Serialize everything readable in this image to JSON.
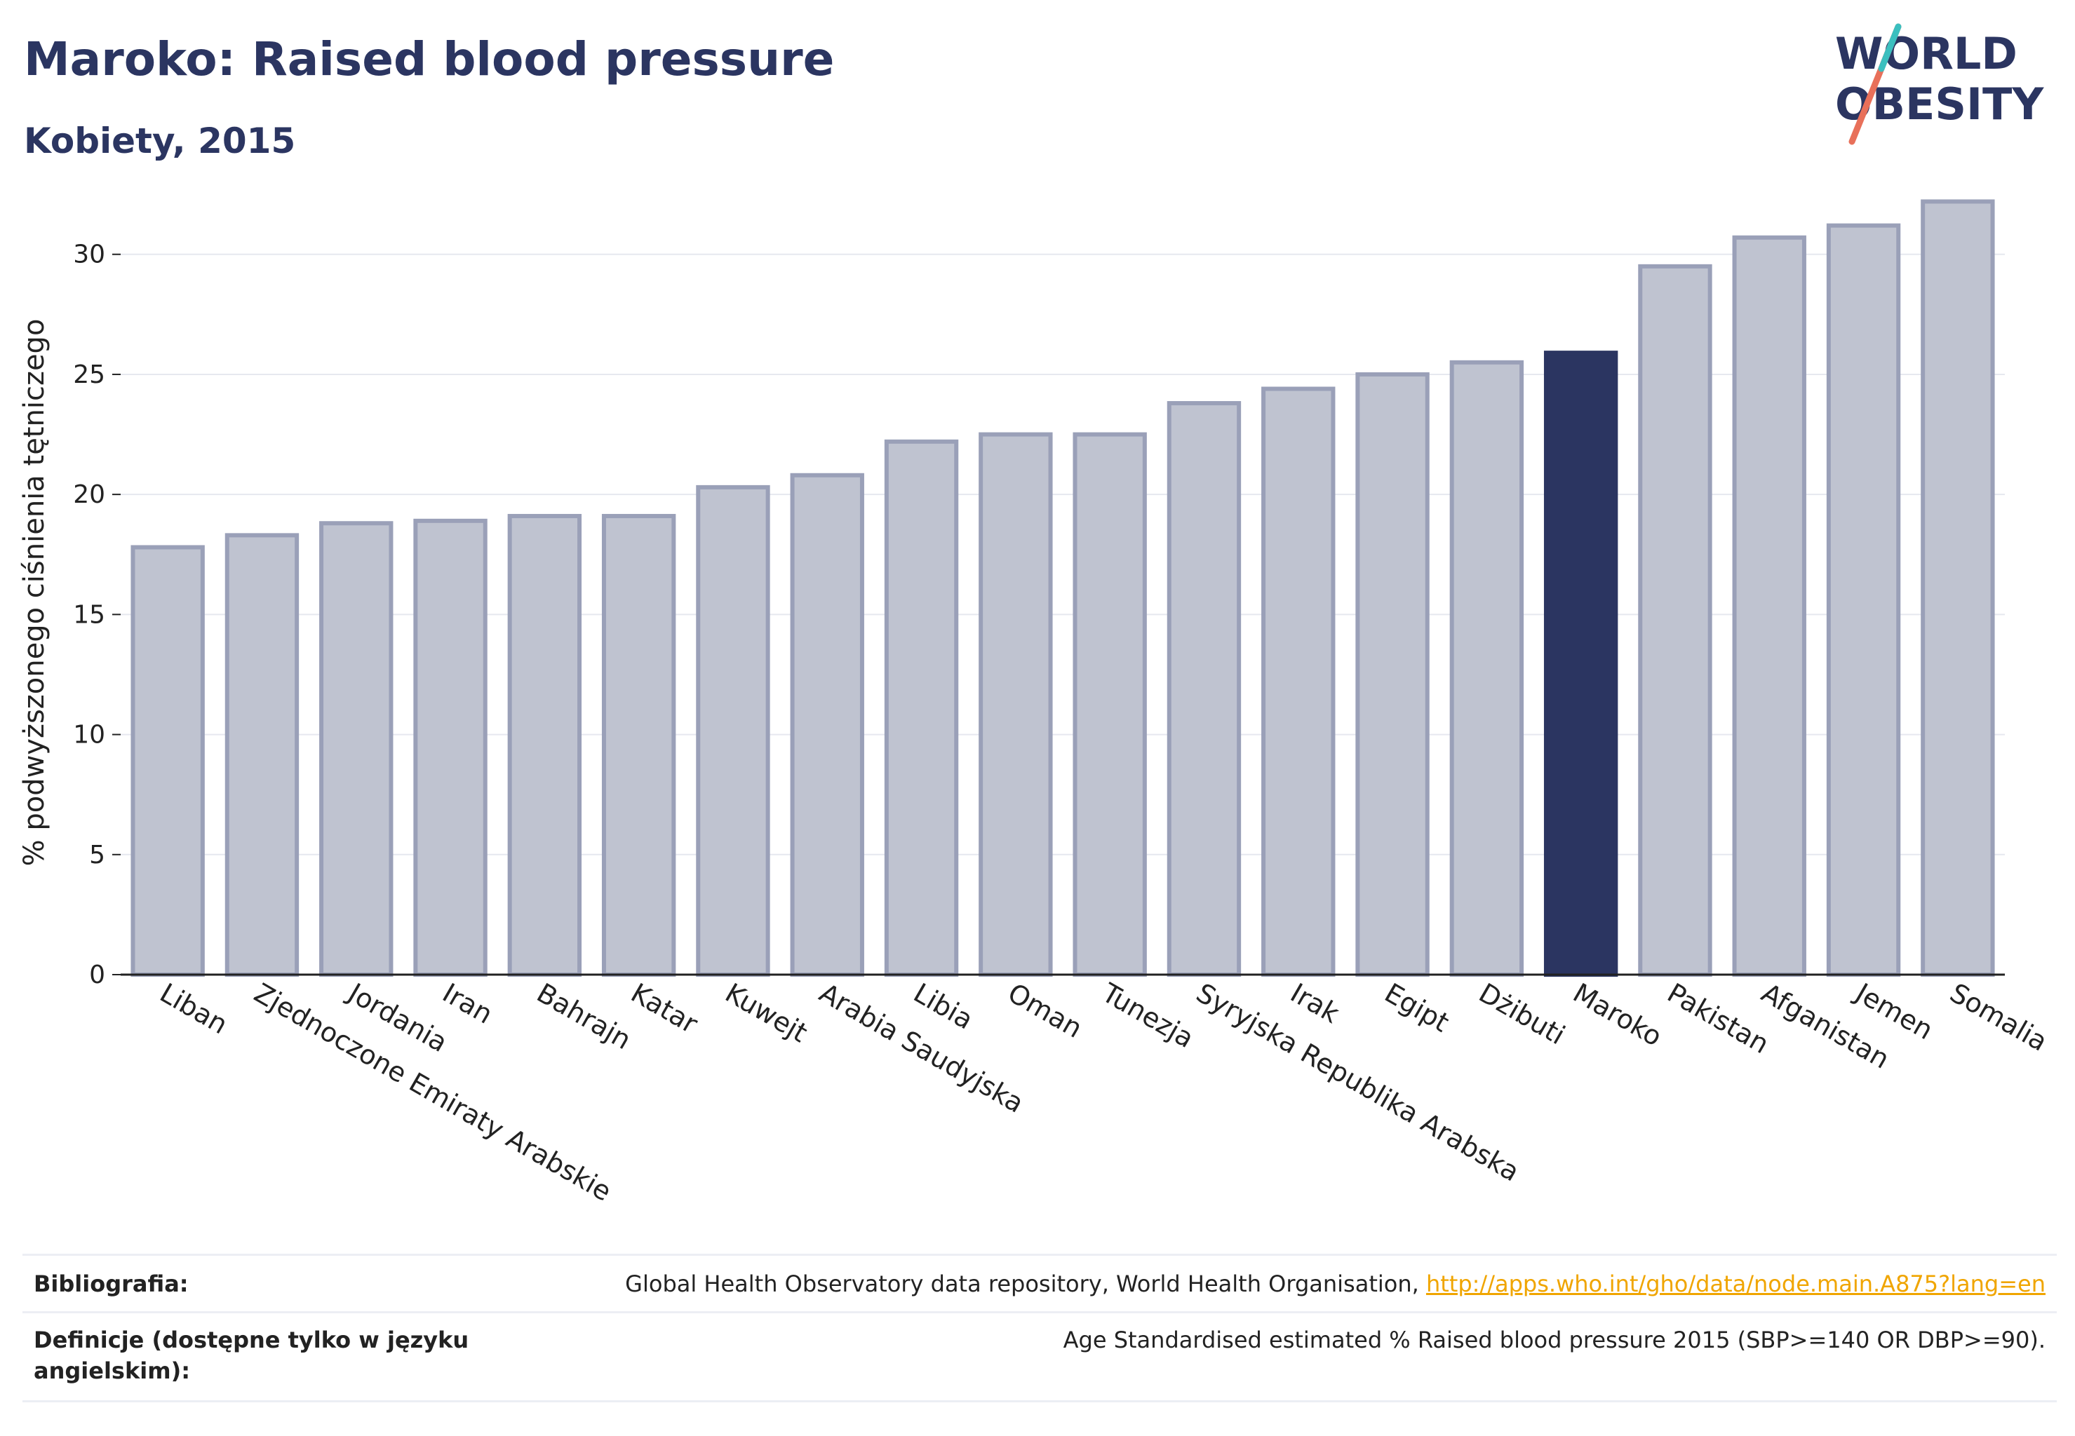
{
  "header": {
    "title": "Maroko: Raised blood pressure",
    "subtitle": "Kobiety, 2015"
  },
  "logo": {
    "line1": "WORLD",
    "line2": "OBESITY"
  },
  "colors": {
    "title": "#2b3561",
    "bar_default": "#bfc3d0",
    "bar_default_stroke": "#9aa0b8",
    "bar_highlight": "#2b3561",
    "grid": "#e6e8ef",
    "link": "#f0a500"
  },
  "chart_data": {
    "type": "bar",
    "ylabel": "% podwyższonego ciśnienia tętniczego",
    "ylim": [
      0,
      33
    ],
    "yticks": [
      0,
      5,
      10,
      15,
      20,
      25,
      30
    ],
    "grid": true,
    "highlight": "Maroko",
    "categories": [
      "Liban",
      "Zjednoczone Emiraty Arabskie",
      "Jordania",
      "Iran",
      "Bahrajn",
      "Katar",
      "Kuwejt",
      "Arabia Saudyjska",
      "Libia",
      "Oman",
      "Tunezja",
      "Syryjska Republika Arabska",
      "Irak",
      "Egipt",
      "Dżibuti",
      "Maroko",
      "Pakistan",
      "Afganistan",
      "Jemen",
      "Somalia"
    ],
    "values": [
      17.8,
      18.3,
      18.8,
      18.9,
      19.1,
      19.1,
      20.3,
      20.8,
      22.2,
      22.5,
      22.5,
      23.8,
      24.4,
      25.0,
      25.5,
      25.9,
      29.5,
      30.7,
      31.2,
      32.2
    ]
  },
  "footer": {
    "bibliography_label": "Bibliografia:",
    "bibliography_text": "Global Health Observatory data repository, World Health Organisation,",
    "bibliography_link": "http://apps.who.int/gho/data/node.main.A875?lang=en",
    "definitions_label": "Definicje (dostępne tylko w języku angielskim):",
    "definitions_text": "Age Standardised estimated % Raised blood pressure 2015 (SBP>=140 OR DBP>=90)."
  }
}
